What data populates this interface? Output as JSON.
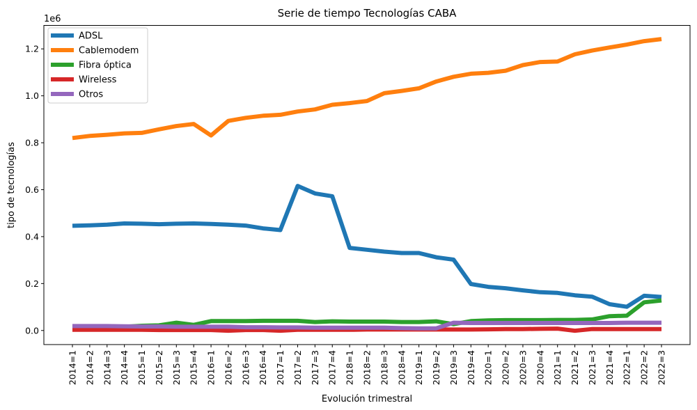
{
  "chart_data": {
    "type": "line",
    "title": "Serie de tiempo Tecnologías CABA",
    "xlabel": "Evolución trimestral",
    "ylabel": "tipo de tecnologías",
    "y_offset_label": "1e6",
    "ylim": [
      -60000,
      1300000
    ],
    "y_ticks": [
      0,
      200000,
      400000,
      600000,
      800000,
      1000000,
      1200000
    ],
    "y_tick_labels": [
      "0.0",
      "0.2",
      "0.4",
      "0.6",
      "0.8",
      "1.0",
      "1.2"
    ],
    "legend_position": "top-left",
    "grid": false,
    "categories": [
      "2014=1",
      "2014=2",
      "2014=3",
      "2014=4",
      "2015=1",
      "2015=2",
      "2015=3",
      "2015=4",
      "2016=1",
      "2016=2",
      "2016=3",
      "2016=4",
      "2017=1",
      "2017=2",
      "2017=3",
      "2017=4",
      "2018=1",
      "2018=2",
      "2018=3",
      "2018=4",
      "2019=1",
      "2019=2",
      "2019=3",
      "2019=4",
      "2020=1",
      "2020=2",
      "2020=3",
      "2020=4",
      "2021=1",
      "2021=2",
      "2021=3",
      "2021=4",
      "2022=1",
      "2022=2",
      "2022=3"
    ],
    "series": [
      {
        "name": "ADSL",
        "color": "#1f77b4",
        "values": [
          446000,
          448000,
          451000,
          456000,
          455000,
          453000,
          455000,
          456000,
          454000,
          451000,
          447000,
          435000,
          428000,
          616000,
          584000,
          572000,
          352000,
          344000,
          336000,
          330000,
          330000,
          312000,
          302000,
          198000,
          186000,
          180000,
          171000,
          163000,
          160000,
          150000,
          144000,
          112000,
          101000,
          148000,
          143000
        ]
      },
      {
        "name": "Cablemodem",
        "color": "#ff7f0e",
        "values": [
          820000,
          829000,
          834000,
          840000,
          842000,
          857000,
          871000,
          880000,
          831000,
          893000,
          906000,
          915000,
          919000,
          933000,
          942000,
          962000,
          969000,
          978000,
          1011000,
          1021000,
          1032000,
          1061000,
          1081000,
          1094000,
          1098000,
          1107000,
          1131000,
          1144000,
          1146000,
          1177000,
          1193000,
          1206000,
          1218000,
          1233000,
          1242000
        ]
      },
      {
        "name": "Fibra óptica",
        "color": "#2ca02c",
        "values": [
          12000,
          13000,
          14000,
          16000,
          20000,
          22000,
          33000,
          24000,
          40000,
          40000,
          40000,
          41000,
          41000,
          41000,
          36000,
          39000,
          38000,
          38000,
          38000,
          36000,
          36000,
          39000,
          27000,
          40000,
          43000,
          44000,
          44000,
          44000,
          45000,
          45000,
          47000,
          61000,
          63000,
          120000,
          128000
        ]
      },
      {
        "name": "Wireless",
        "color": "#d62728",
        "values": [
          3000,
          3000,
          3000,
          3000,
          3000,
          2000,
          2000,
          2000,
          2000,
          -1000,
          2000,
          2000,
          -1000,
          3000,
          3000,
          3000,
          3000,
          4000,
          4000,
          4000,
          4000,
          4000,
          4000,
          4000,
          5000,
          6000,
          6000,
          7000,
          8000,
          -1000,
          6000,
          6000,
          6000,
          6000,
          6000
        ]
      },
      {
        "name": "Otros",
        "color": "#9467bd",
        "values": [
          19000,
          19000,
          19000,
          18000,
          17000,
          17000,
          16000,
          16000,
          16000,
          16000,
          14000,
          14000,
          13000,
          13000,
          12000,
          12000,
          12000,
          12000,
          12000,
          10000,
          9000,
          9000,
          33000,
          32000,
          32000,
          32000,
          32000,
          32000,
          32000,
          32000,
          32000,
          32000,
          33000,
          33000,
          33000
        ]
      }
    ]
  }
}
